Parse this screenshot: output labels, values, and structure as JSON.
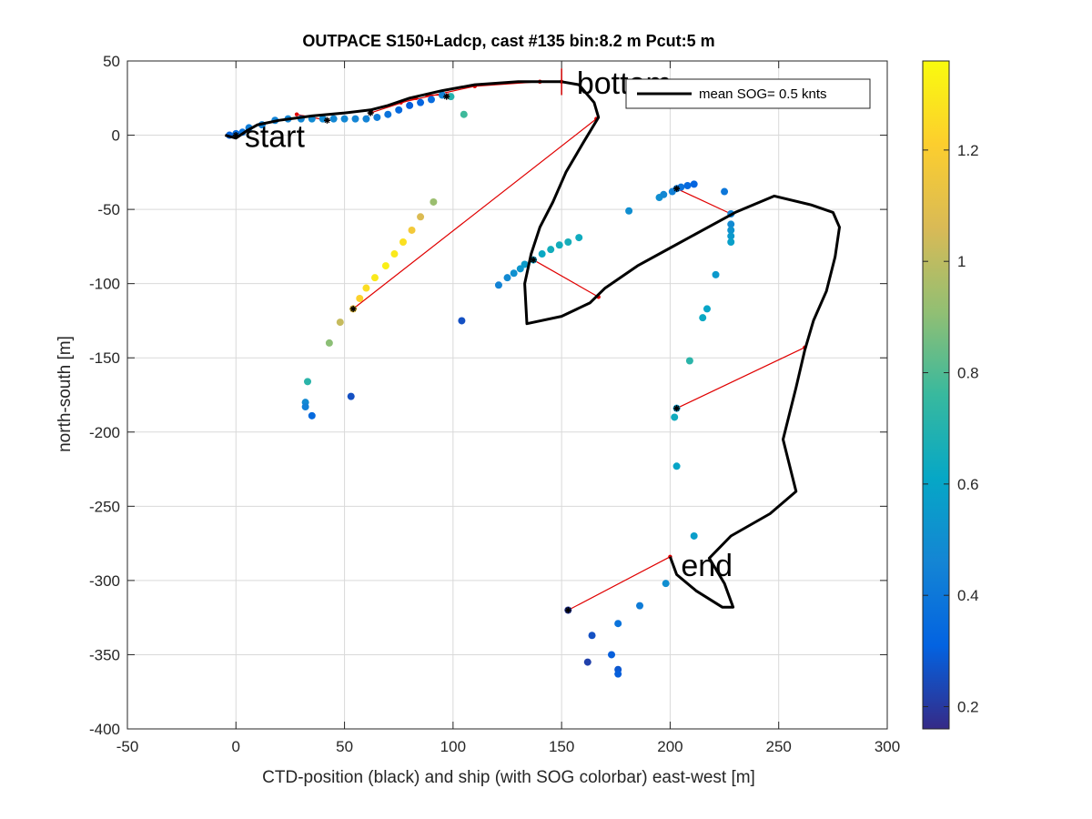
{
  "chart_data": {
    "type": "scatter",
    "title": "OUTPACE S150+Ladcp, cast #135 bin:8.2 m  Pcut:5 m",
    "xlabel": "CTD-position (black) and ship (with SOG colorbar) east-west [m]",
    "ylabel": "north-south [m]",
    "xlim": [
      -50,
      300
    ],
    "ylim": [
      -400,
      50
    ],
    "xticks": [
      -50,
      0,
      50,
      100,
      150,
      200,
      250,
      300
    ],
    "yticks": [
      -400,
      -350,
      -300,
      -250,
      -200,
      -150,
      -100,
      -50,
      0,
      50
    ],
    "grid": true,
    "legend": {
      "position": "top-right",
      "label": "mean SOG=  0.5 knts"
    },
    "colorbar": {
      "range": [
        0.16,
        1.36
      ],
      "ticks": [
        0.2,
        0.4,
        0.6,
        0.8,
        1,
        1.2
      ],
      "colors": [
        "#352a87",
        "#0363e1",
        "#1485d4",
        "#06a7c6",
        "#38b99e",
        "#92bf73",
        "#d9ba56",
        "#fcce2e",
        "#f9fb0e"
      ]
    },
    "annotations": [
      {
        "text": "start",
        "x": 4,
        "y": -8
      },
      {
        "text": "bottom",
        "x": 157,
        "y": 28
      },
      {
        "text": "end",
        "x": 205,
        "y": -297
      }
    ],
    "bottom_marker": {
      "x": 150,
      "y": [
        27,
        45
      ]
    },
    "ctd_track": [
      [
        -5,
        0
      ],
      [
        0,
        -2
      ],
      [
        5,
        3
      ],
      [
        10,
        7
      ],
      [
        20,
        10
      ],
      [
        35,
        13
      ],
      [
        50,
        15
      ],
      [
        62,
        17
      ],
      [
        70,
        20
      ],
      [
        80,
        25
      ],
      [
        95,
        30
      ],
      [
        110,
        34
      ],
      [
        130,
        36
      ],
      [
        150,
        36
      ],
      [
        158,
        34
      ],
      [
        165,
        22
      ],
      [
        167,
        12
      ],
      [
        160,
        -5
      ],
      [
        152,
        -25
      ],
      [
        146,
        -45
      ],
      [
        140,
        -62
      ],
      [
        136,
        -80
      ],
      [
        133,
        -100
      ],
      [
        134,
        -127
      ],
      [
        150,
        -122
      ],
      [
        163,
        -113
      ],
      [
        170,
        -103
      ],
      [
        185,
        -88
      ],
      [
        200,
        -76
      ],
      [
        215,
        -64
      ],
      [
        230,
        -52
      ],
      [
        248,
        -41
      ],
      [
        265,
        -47
      ],
      [
        275,
        -52
      ],
      [
        278,
        -62
      ],
      [
        276,
        -82
      ],
      [
        272,
        -105
      ],
      [
        266,
        -125
      ],
      [
        262,
        -145
      ],
      [
        258,
        -170
      ],
      [
        252,
        -205
      ],
      [
        258,
        -240
      ],
      [
        246,
        -255
      ],
      [
        228,
        -270
      ],
      [
        218,
        -285
      ],
      [
        225,
        -302
      ],
      [
        229,
        -318
      ],
      [
        224,
        -318
      ],
      [
        212,
        -307
      ],
      [
        203,
        -296
      ],
      [
        200,
        -284
      ]
    ],
    "ship_points": [
      {
        "x": -3,
        "y": 0,
        "sog": 0.32
      },
      {
        "x": 0,
        "y": 1,
        "sog": 0.35
      },
      {
        "x": 3,
        "y": 2,
        "sog": 0.38
      },
      {
        "x": 6,
        "y": 5,
        "sog": 0.42
      },
      {
        "x": 12,
        "y": 7,
        "sog": 0.44
      },
      {
        "x": 18,
        "y": 10,
        "sog": 0.45
      },
      {
        "x": 24,
        "y": 11,
        "sog": 0.46
      },
      {
        "x": 30,
        "y": 11,
        "sog": 0.47
      },
      {
        "x": 35,
        "y": 11,
        "sog": 0.48
      },
      {
        "x": 40,
        "y": 11,
        "sog": 0.48
      },
      {
        "x": 45,
        "y": 11,
        "sog": 0.47
      },
      {
        "x": 50,
        "y": 11,
        "sog": 0.47
      },
      {
        "x": 55,
        "y": 11,
        "sog": 0.46
      },
      {
        "x": 60,
        "y": 11,
        "sog": 0.45
      },
      {
        "x": 65,
        "y": 12,
        "sog": 0.42
      },
      {
        "x": 70,
        "y": 14,
        "sog": 0.38
      },
      {
        "x": 75,
        "y": 17,
        "sog": 0.34
      },
      {
        "x": 80,
        "y": 20,
        "sog": 0.3
      },
      {
        "x": 85,
        "y": 22,
        "sog": 0.32
      },
      {
        "x": 90,
        "y": 24,
        "sog": 0.35
      },
      {
        "x": 95,
        "y": 27,
        "sog": 0.45
      },
      {
        "x": 99,
        "y": 26,
        "sog": 0.7
      },
      {
        "x": 105,
        "y": 14,
        "sog": 0.77
      },
      {
        "x": 91,
        "y": -45,
        "sog": 0.93
      },
      {
        "x": 85,
        "y": -55,
        "sog": 1.07
      },
      {
        "x": 81,
        "y": -64,
        "sog": 1.17
      },
      {
        "x": 77,
        "y": -72,
        "sog": 1.27
      },
      {
        "x": 73,
        "y": -80,
        "sog": 1.3
      },
      {
        "x": 69,
        "y": -88,
        "sog": 1.32
      },
      {
        "x": 64,
        "y": -96,
        "sog": 1.3
      },
      {
        "x": 60,
        "y": -103,
        "sog": 1.26
      },
      {
        "x": 57,
        "y": -110,
        "sog": 1.22
      },
      {
        "x": 54,
        "y": -117,
        "sog": 1.15
      },
      {
        "x": 48,
        "y": -126,
        "sog": 1.02
      },
      {
        "x": 43,
        "y": -140,
        "sog": 0.9
      },
      {
        "x": 33,
        "y": -166,
        "sog": 0.72
      },
      {
        "x": 32,
        "y": -180,
        "sog": 0.48
      },
      {
        "x": 32,
        "y": -183,
        "sog": 0.44
      },
      {
        "x": 35,
        "y": -189,
        "sog": 0.34
      },
      {
        "x": 53,
        "y": -176,
        "sog": 0.26
      },
      {
        "x": 104,
        "y": -125,
        "sog": 0.26
      },
      {
        "x": 121,
        "y": -101,
        "sog": 0.45
      },
      {
        "x": 125,
        "y": -96,
        "sog": 0.48
      },
      {
        "x": 128,
        "y": -93,
        "sog": 0.51
      },
      {
        "x": 131,
        "y": -90,
        "sog": 0.53
      },
      {
        "x": 133,
        "y": -87,
        "sog": 0.56
      },
      {
        "x": 137,
        "y": -84,
        "sog": 0.58
      },
      {
        "x": 141,
        "y": -80,
        "sog": 0.62
      },
      {
        "x": 145,
        "y": -77,
        "sog": 0.65
      },
      {
        "x": 149,
        "y": -74,
        "sog": 0.65
      },
      {
        "x": 153,
        "y": -72,
        "sog": 0.66
      },
      {
        "x": 158,
        "y": -69,
        "sog": 0.64
      },
      {
        "x": 181,
        "y": -51,
        "sog": 0.5
      },
      {
        "x": 195,
        "y": -42,
        "sog": 0.5
      },
      {
        "x": 197,
        "y": -40,
        "sog": 0.47
      },
      {
        "x": 201,
        "y": -38,
        "sog": 0.44
      },
      {
        "x": 203,
        "y": -36,
        "sog": 0.42
      },
      {
        "x": 205,
        "y": -35,
        "sog": 0.38
      },
      {
        "x": 208,
        "y": -34,
        "sog": 0.34
      },
      {
        "x": 211,
        "y": -33,
        "sog": 0.32
      },
      {
        "x": 225,
        "y": -38,
        "sog": 0.4
      },
      {
        "x": 228,
        "y": -53,
        "sog": 0.45
      },
      {
        "x": 228,
        "y": -60,
        "sog": 0.48
      },
      {
        "x": 228,
        "y": -64,
        "sog": 0.52
      },
      {
        "x": 228,
        "y": -68,
        "sog": 0.55
      },
      {
        "x": 228,
        "y": -72,
        "sog": 0.58
      },
      {
        "x": 221,
        "y": -94,
        "sog": 0.55
      },
      {
        "x": 217,
        "y": -117,
        "sog": 0.6
      },
      {
        "x": 215,
        "y": -123,
        "sog": 0.62
      },
      {
        "x": 209,
        "y": -152,
        "sog": 0.72
      },
      {
        "x": 203,
        "y": -184,
        "sog": 0.56
      },
      {
        "x": 202,
        "y": -190,
        "sog": 0.64
      },
      {
        "x": 203,
        "y": -223,
        "sog": 0.6
      },
      {
        "x": 211,
        "y": -270,
        "sog": 0.57
      },
      {
        "x": 198,
        "y": -302,
        "sog": 0.5
      },
      {
        "x": 186,
        "y": -317,
        "sog": 0.42
      },
      {
        "x": 176,
        "y": -329,
        "sog": 0.38
      },
      {
        "x": 164,
        "y": -337,
        "sog": 0.26
      },
      {
        "x": 173,
        "y": -350,
        "sog": 0.3
      },
      {
        "x": 162,
        "y": -355,
        "sog": 0.22
      },
      {
        "x": 176,
        "y": -360,
        "sog": 0.28
      },
      {
        "x": 176,
        "y": -363,
        "sog": 0.3
      },
      {
        "x": 153,
        "y": -320,
        "sog": 0.2
      }
    ],
    "red_segments": [
      [
        [
          28,
          14
        ],
        [
          42,
          10
        ]
      ],
      [
        [
          62,
          15
        ],
        [
          83,
          25
        ]
      ],
      [
        [
          88,
          27
        ],
        [
          98,
          27
        ]
      ],
      [
        [
          76,
          22
        ],
        [
          110,
          33
        ]
      ],
      [
        [
          110,
          33
        ],
        [
          140,
          36
        ]
      ],
      [
        [
          140,
          36
        ],
        [
          150,
          36
        ]
      ],
      [
        [
          166,
          11
        ],
        [
          54,
          -117
        ]
      ],
      [
        [
          137,
          -84
        ],
        [
          167,
          -109
        ]
      ],
      [
        [
          203,
          -36
        ],
        [
          228,
          -53
        ]
      ],
      [
        [
          203,
          -184
        ],
        [
          262,
          -143
        ]
      ],
      [
        [
          153,
          -320
        ],
        [
          200,
          -284
        ]
      ]
    ],
    "black_markers": [
      [
        0,
        0
      ],
      [
        42,
        10
      ],
      [
        62,
        15
      ],
      [
        97,
        26
      ],
      [
        54,
        -117
      ],
      [
        137,
        -84
      ],
      [
        203,
        -36
      ],
      [
        203,
        -184
      ],
      [
        153,
        -320
      ]
    ]
  }
}
